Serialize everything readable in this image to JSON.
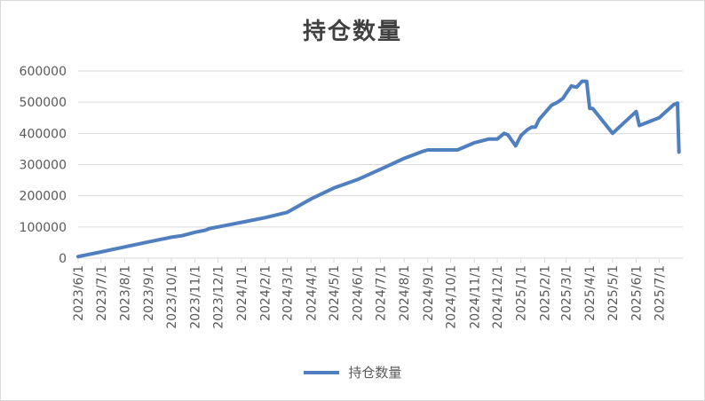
{
  "chart_data": {
    "type": "line",
    "title": "持仓数量",
    "xlabel": "",
    "ylabel": "",
    "ylim": [
      0,
      600000
    ],
    "y_ticks": [
      "0",
      "100000",
      "200000",
      "300000",
      "400000",
      "500000",
      "600000"
    ],
    "x_ticks": [
      "2023/6/1",
      "2023/7/1",
      "2023/8/1",
      "2023/9/1",
      "2023/10/1",
      "2023/11/1",
      "2023/12/1",
      "2024/1/1",
      "2024/2/1",
      "2024/3/1",
      "2024/4/1",
      "2024/5/1",
      "2024/6/1",
      "2024/7/1",
      "2024/8/1",
      "2024/9/1",
      "2024/10/1",
      "2024/11/1",
      "2024/12/1",
      "2025/1/1",
      "2025/2/1",
      "2025/3/1",
      "2025/4/1",
      "2025/5/1",
      "2025/6/1",
      "2025/7/1"
    ],
    "x_range": [
      "2023/6/1",
      "2025/8/1"
    ],
    "grid": true,
    "legend": "bottom",
    "series": [
      {
        "name": "持仓数量",
        "color": "#4f7fbf",
        "x": [
          "2023/6/1",
          "2023/7/1",
          "2023/8/1",
          "2023/9/1",
          "2023/10/1",
          "2023/10/15",
          "2023/11/1",
          "2023/11/15",
          "2023/11/20",
          "2023/12/1",
          "2024/1/1",
          "2024/2/1",
          "2024/3/1",
          "2024/4/1",
          "2024/5/1",
          "2024/6/1",
          "2024/7/1",
          "2024/8/1",
          "2024/8/25",
          "2024/9/1",
          "2024/10/1",
          "2024/10/10",
          "2024/11/1",
          "2024/11/20",
          "2024/12/1",
          "2024/12/10",
          "2024/12/15",
          "2024/12/25",
          "2025/1/1",
          "2025/1/10",
          "2025/1/15",
          "2025/1/20",
          "2025/1/25",
          "2025/2/10",
          "2025/2/18",
          "2025/2/25",
          "2025/3/1",
          "2025/3/8",
          "2025/3/15",
          "2025/3/22",
          "2025/3/28",
          "2025/4/1",
          "2025/4/5",
          "2025/5/1",
          "2025/6/1",
          "2025/6/5",
          "2025/7/1",
          "2025/7/20",
          "2025/7/25",
          "2025/7/27"
        ],
        "values": [
          5000,
          20000,
          36000,
          52000,
          67000,
          72000,
          83000,
          90000,
          95000,
          100000,
          115000,
          130000,
          147000,
          190000,
          225000,
          252000,
          285000,
          320000,
          342000,
          347000,
          347000,
          347000,
          370000,
          382000,
          382000,
          400000,
          395000,
          360000,
          393000,
          413000,
          420000,
          420000,
          445000,
          490000,
          500000,
          512000,
          527000,
          552000,
          548000,
          567000,
          567000,
          480000,
          480000,
          400000,
          470000,
          425000,
          450000,
          492000,
          497000,
          340000
        ]
      }
    ]
  }
}
